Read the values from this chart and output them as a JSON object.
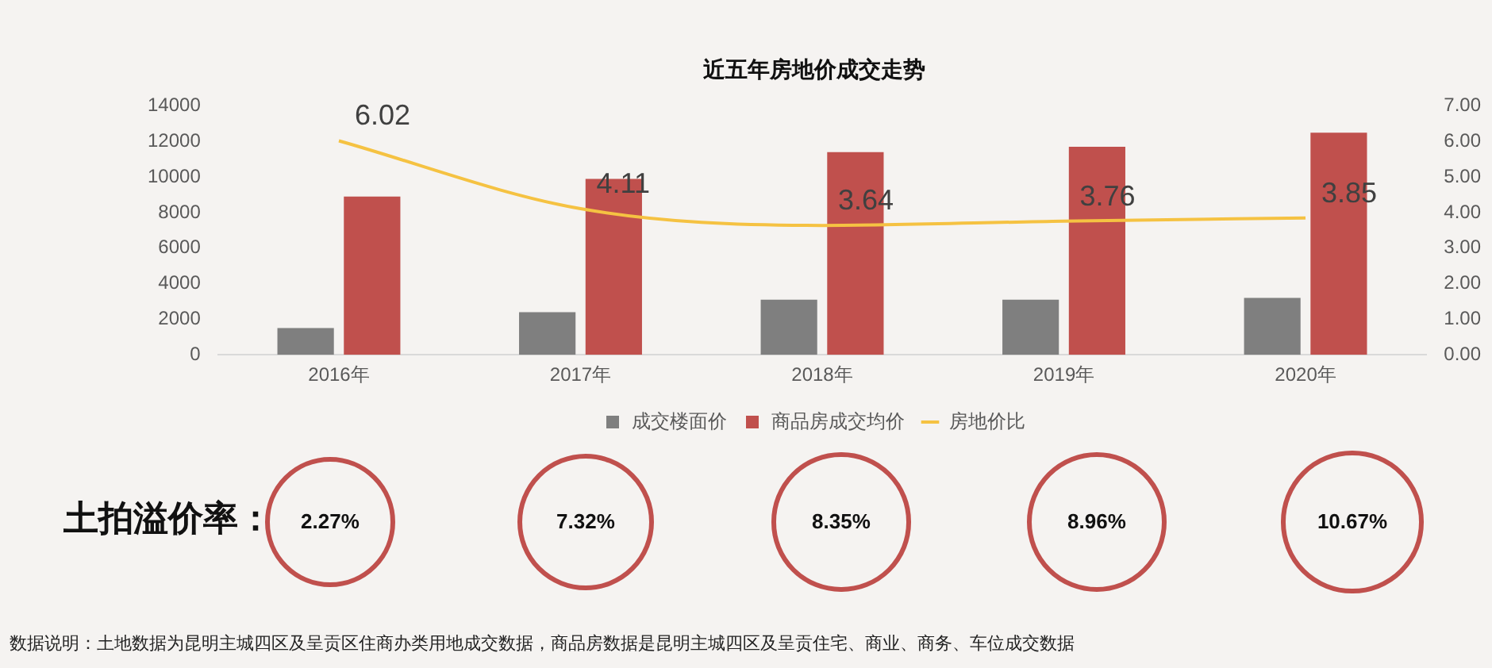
{
  "chart_data": [
    {
      "type": "bar",
      "title": "近五年房地价成交走势",
      "categories": [
        "2016年",
        "2017年",
        "2018年",
        "2019年",
        "2020年"
      ],
      "series": [
        {
          "name": "成交楼面价",
          "color": "#7f7f7f",
          "values": [
            1500,
            2400,
            3100,
            3100,
            3200
          ]
        },
        {
          "name": "商品房成交均价",
          "color": "#c0504d",
          "values": [
            8900,
            9900,
            11400,
            11700,
            12500
          ]
        },
        {
          "name": "房地价比",
          "type": "line",
          "axis": "y2",
          "color": "#f5c242",
          "values": [
            6.02,
            4.11,
            3.64,
            3.76,
            3.85
          ],
          "value_labels": [
            "6.02",
            "4.11",
            "3.64",
            "3.76",
            "3.85"
          ]
        }
      ],
      "ylim": [
        0,
        14000
      ],
      "yticks": [
        0,
        2000,
        4000,
        6000,
        8000,
        10000,
        12000,
        14000
      ],
      "y2lim": [
        0,
        7
      ],
      "y2ticks": [
        {
          "value": 0,
          "label": "0.00"
        },
        {
          "value": 1,
          "label": "1.00"
        },
        {
          "value": 2,
          "label": "2.00"
        },
        {
          "value": 3,
          "label": "3.00"
        },
        {
          "value": 4,
          "label": "4.00"
        },
        {
          "value": 5,
          "label": "5.00"
        },
        {
          "value": 6,
          "label": "6.00"
        },
        {
          "value": 7,
          "label": "7.00"
        }
      ],
      "legend": "bottom",
      "marker": "none",
      "annotations": [
        "数据说明：土地数据为昆明主城四区及呈贡区住商办类用地成交数据，商品房数据是昆明主城四区及呈贡住宅、商业、商务、车位成交数据"
      ]
    },
    {
      "type": "other",
      "title": "土拍溢价率：",
      "categories": [
        null,
        null,
        null,
        null,
        null
      ],
      "values": [
        2.27,
        7.32,
        8.35,
        8.96,
        10.67
      ],
      "value_labels": [
        "2.27%",
        "7.32%",
        "8.35%",
        "8.96%",
        "10.67%"
      ],
      "color": "#c0504d"
    }
  ]
}
